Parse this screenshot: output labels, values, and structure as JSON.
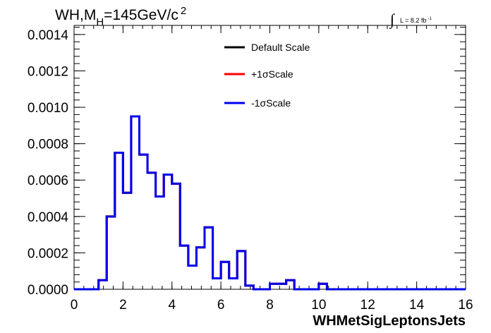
{
  "chart_data": {
    "type": "line",
    "title_main": "WH,M",
    "title_sub": "H",
    "title_rest": "=145GeV/c",
    "title_sup": "2",
    "lumi_label": "L = 8.2 fb",
    "lumi_sup": "-1",
    "xlabel": "WHMetSigLeptonsJets",
    "xlim": [
      0,
      16
    ],
    "ylim": [
      0,
      0.00145
    ],
    "x_ticks": [
      "0",
      "2",
      "4",
      "6",
      "8",
      "10",
      "12",
      "14",
      "16"
    ],
    "y_ticks": [
      "0.0000",
      "0.0002",
      "0.0004",
      "0.0006",
      "0.0008",
      "0.0010",
      "0.0012",
      "0.0014"
    ],
    "bin_edges": [
      0,
      0.333,
      0.667,
      1,
      1.333,
      1.667,
      2,
      2.333,
      2.667,
      3,
      3.333,
      3.667,
      4,
      4.333,
      4.667,
      5,
      5.333,
      5.667,
      6,
      6.333,
      6.667,
      7,
      7.333,
      7.667,
      8,
      8.333,
      8.667,
      9,
      9.333,
      9.667,
      10,
      10.333,
      10.667,
      11,
      11.333,
      11.667,
      12,
      12.333,
      12.667,
      13,
      13.333,
      13.667,
      14,
      14.333,
      14.667,
      15,
      15.333,
      15.667,
      16
    ],
    "series": [
      {
        "name": "Default Scale",
        "color": "#000000",
        "values": [
          0,
          0,
          0,
          5e-05,
          0.0004,
          0.00075,
          0.00053,
          0.00095,
          0.00074,
          0.00064,
          0.00051,
          0.00063,
          0.00058,
          0.00024,
          0.00013,
          0.00023,
          0.00034,
          6e-05,
          0.00015,
          6e-05,
          0.00021,
          2e-05,
          0,
          0,
          3e-05,
          3e-05,
          5e-05,
          0,
          0,
          0,
          3e-05,
          0,
          0,
          0,
          0,
          0,
          0,
          0,
          0,
          0,
          0,
          0,
          0,
          0,
          0,
          0,
          0,
          0
        ]
      },
      {
        "name": "+1σScale",
        "color": "#ff0000",
        "values": [
          0,
          0,
          0,
          5e-05,
          0.0004,
          0.00075,
          0.00053,
          0.00095,
          0.00074,
          0.00064,
          0.00051,
          0.00063,
          0.00058,
          0.00024,
          0.00013,
          0.00023,
          0.00034,
          6e-05,
          0.00015,
          6e-05,
          0.00021,
          2e-05,
          0,
          0,
          3e-05,
          3e-05,
          5e-05,
          0,
          0,
          0,
          3e-05,
          0,
          0,
          0,
          0,
          0,
          0,
          0,
          0,
          0,
          0,
          0,
          0,
          0,
          0,
          0,
          0,
          0
        ]
      },
      {
        "name": "-1σScale",
        "color": "#0000ee",
        "values": [
          0,
          0,
          0,
          5e-05,
          0.0004,
          0.00075,
          0.00053,
          0.00095,
          0.00074,
          0.00064,
          0.00051,
          0.00063,
          0.00058,
          0.00024,
          0.00013,
          0.00023,
          0.00034,
          6e-05,
          0.00015,
          6e-05,
          0.00021,
          2e-05,
          0,
          0,
          3e-05,
          3e-05,
          5e-05,
          0,
          0,
          0,
          3e-05,
          0,
          0,
          0,
          0,
          0,
          0,
          0,
          0,
          0,
          0,
          0,
          0,
          0,
          0,
          0,
          0,
          0
        ]
      }
    ],
    "legend_position": "top-center"
  }
}
